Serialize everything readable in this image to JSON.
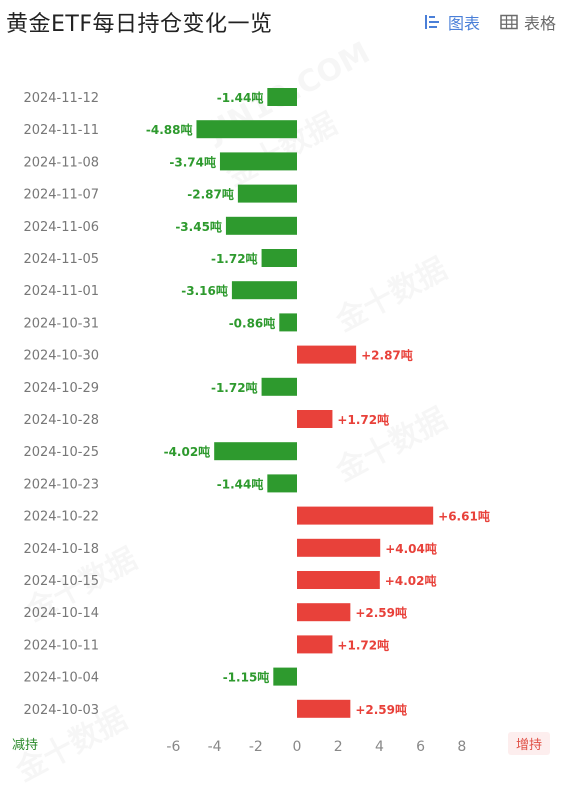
{
  "header": {
    "title": "黄金ETF每日持仓变化一览",
    "view_chart_label": "图表",
    "view_table_label": "表格"
  },
  "legend": {
    "decrease_label": "减持",
    "increase_label": "增持"
  },
  "colors": {
    "positive": "#e8413a",
    "negative": "#2e9a2e",
    "accent": "#4a7fd8"
  },
  "chart_data": {
    "type": "bar",
    "orientation": "horizontal",
    "categories": [
      "2024-11-12",
      "2024-11-11",
      "2024-11-08",
      "2024-11-07",
      "2024-11-06",
      "2024-11-05",
      "2024-11-01",
      "2024-10-31",
      "2024-10-30",
      "2024-10-29",
      "2024-10-28",
      "2024-10-25",
      "2024-10-23",
      "2024-10-22",
      "2024-10-18",
      "2024-10-15",
      "2024-10-14",
      "2024-10-11",
      "2024-10-04",
      "2024-10-03"
    ],
    "values": [
      -1.44,
      -4.88,
      -3.74,
      -2.87,
      -3.45,
      -1.72,
      -3.16,
      -0.86,
      2.87,
      -1.72,
      1.72,
      -4.02,
      -1.44,
      6.61,
      4.04,
      4.02,
      2.59,
      1.72,
      -1.15,
      2.59
    ],
    "data_labels": [
      "-1.44吨",
      "-4.88吨",
      "-3.74吨",
      "-2.87吨",
      "-3.45吨",
      "-1.72吨",
      "-3.16吨",
      "-0.86吨",
      "+2.87吨",
      "-1.72吨",
      "+1.72吨",
      "-4.02吨",
      "-1.44吨",
      "+6.61吨",
      "+4.04吨",
      "+4.02吨",
      "+2.59吨",
      "+1.72吨",
      "-1.15吨",
      "+2.59吨"
    ],
    "x_ticks": [
      "-6",
      "-4",
      "-2",
      "0",
      "2",
      "4",
      "6",
      "8"
    ],
    "xlim": [
      -6,
      8
    ],
    "grid": false
  },
  "watermark": "金十数据"
}
